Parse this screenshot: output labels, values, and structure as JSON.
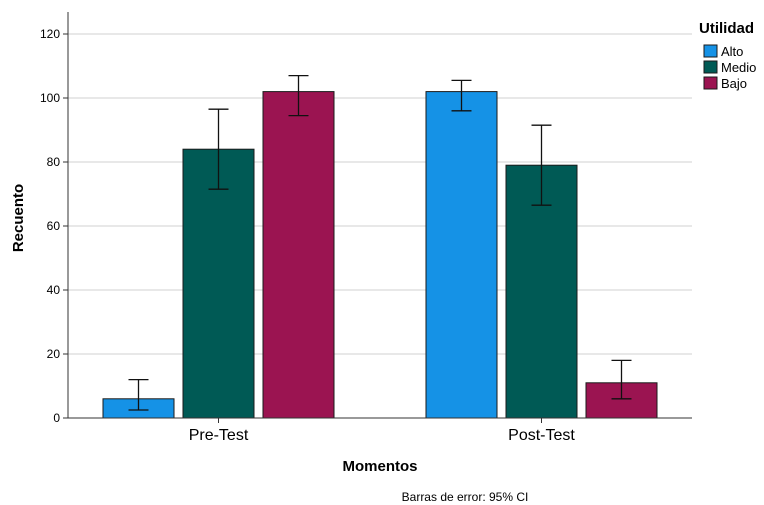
{
  "chart_data": {
    "type": "bar",
    "xlabel": "Momentos",
    "ylabel": "Recuento",
    "ylim": [
      0,
      120
    ],
    "yticks": [
      0,
      20,
      40,
      60,
      80,
      100,
      120
    ],
    "categories": [
      "Pre-Test",
      "Post-Test"
    ],
    "legend_title": "Utilidad",
    "legend_position": "top-right",
    "grid": true,
    "series": [
      {
        "name": "Alto",
        "color": "#1592E6",
        "values": [
          6,
          102
        ],
        "ci_low": [
          2.5,
          96
        ],
        "ci_high": [
          12,
          105.5
        ]
      },
      {
        "name": "Medio",
        "color": "#005A55",
        "values": [
          84,
          79
        ],
        "ci_low": [
          71.5,
          66.5
        ],
        "ci_high": [
          96.5,
          91.5
        ]
      },
      {
        "name": "Bajo",
        "color": "#9B1451",
        "values": [
          102,
          11
        ],
        "ci_low": [
          94.5,
          6
        ],
        "ci_high": [
          107,
          18
        ]
      }
    ],
    "footnote": "Barras de error: 95% CI"
  }
}
